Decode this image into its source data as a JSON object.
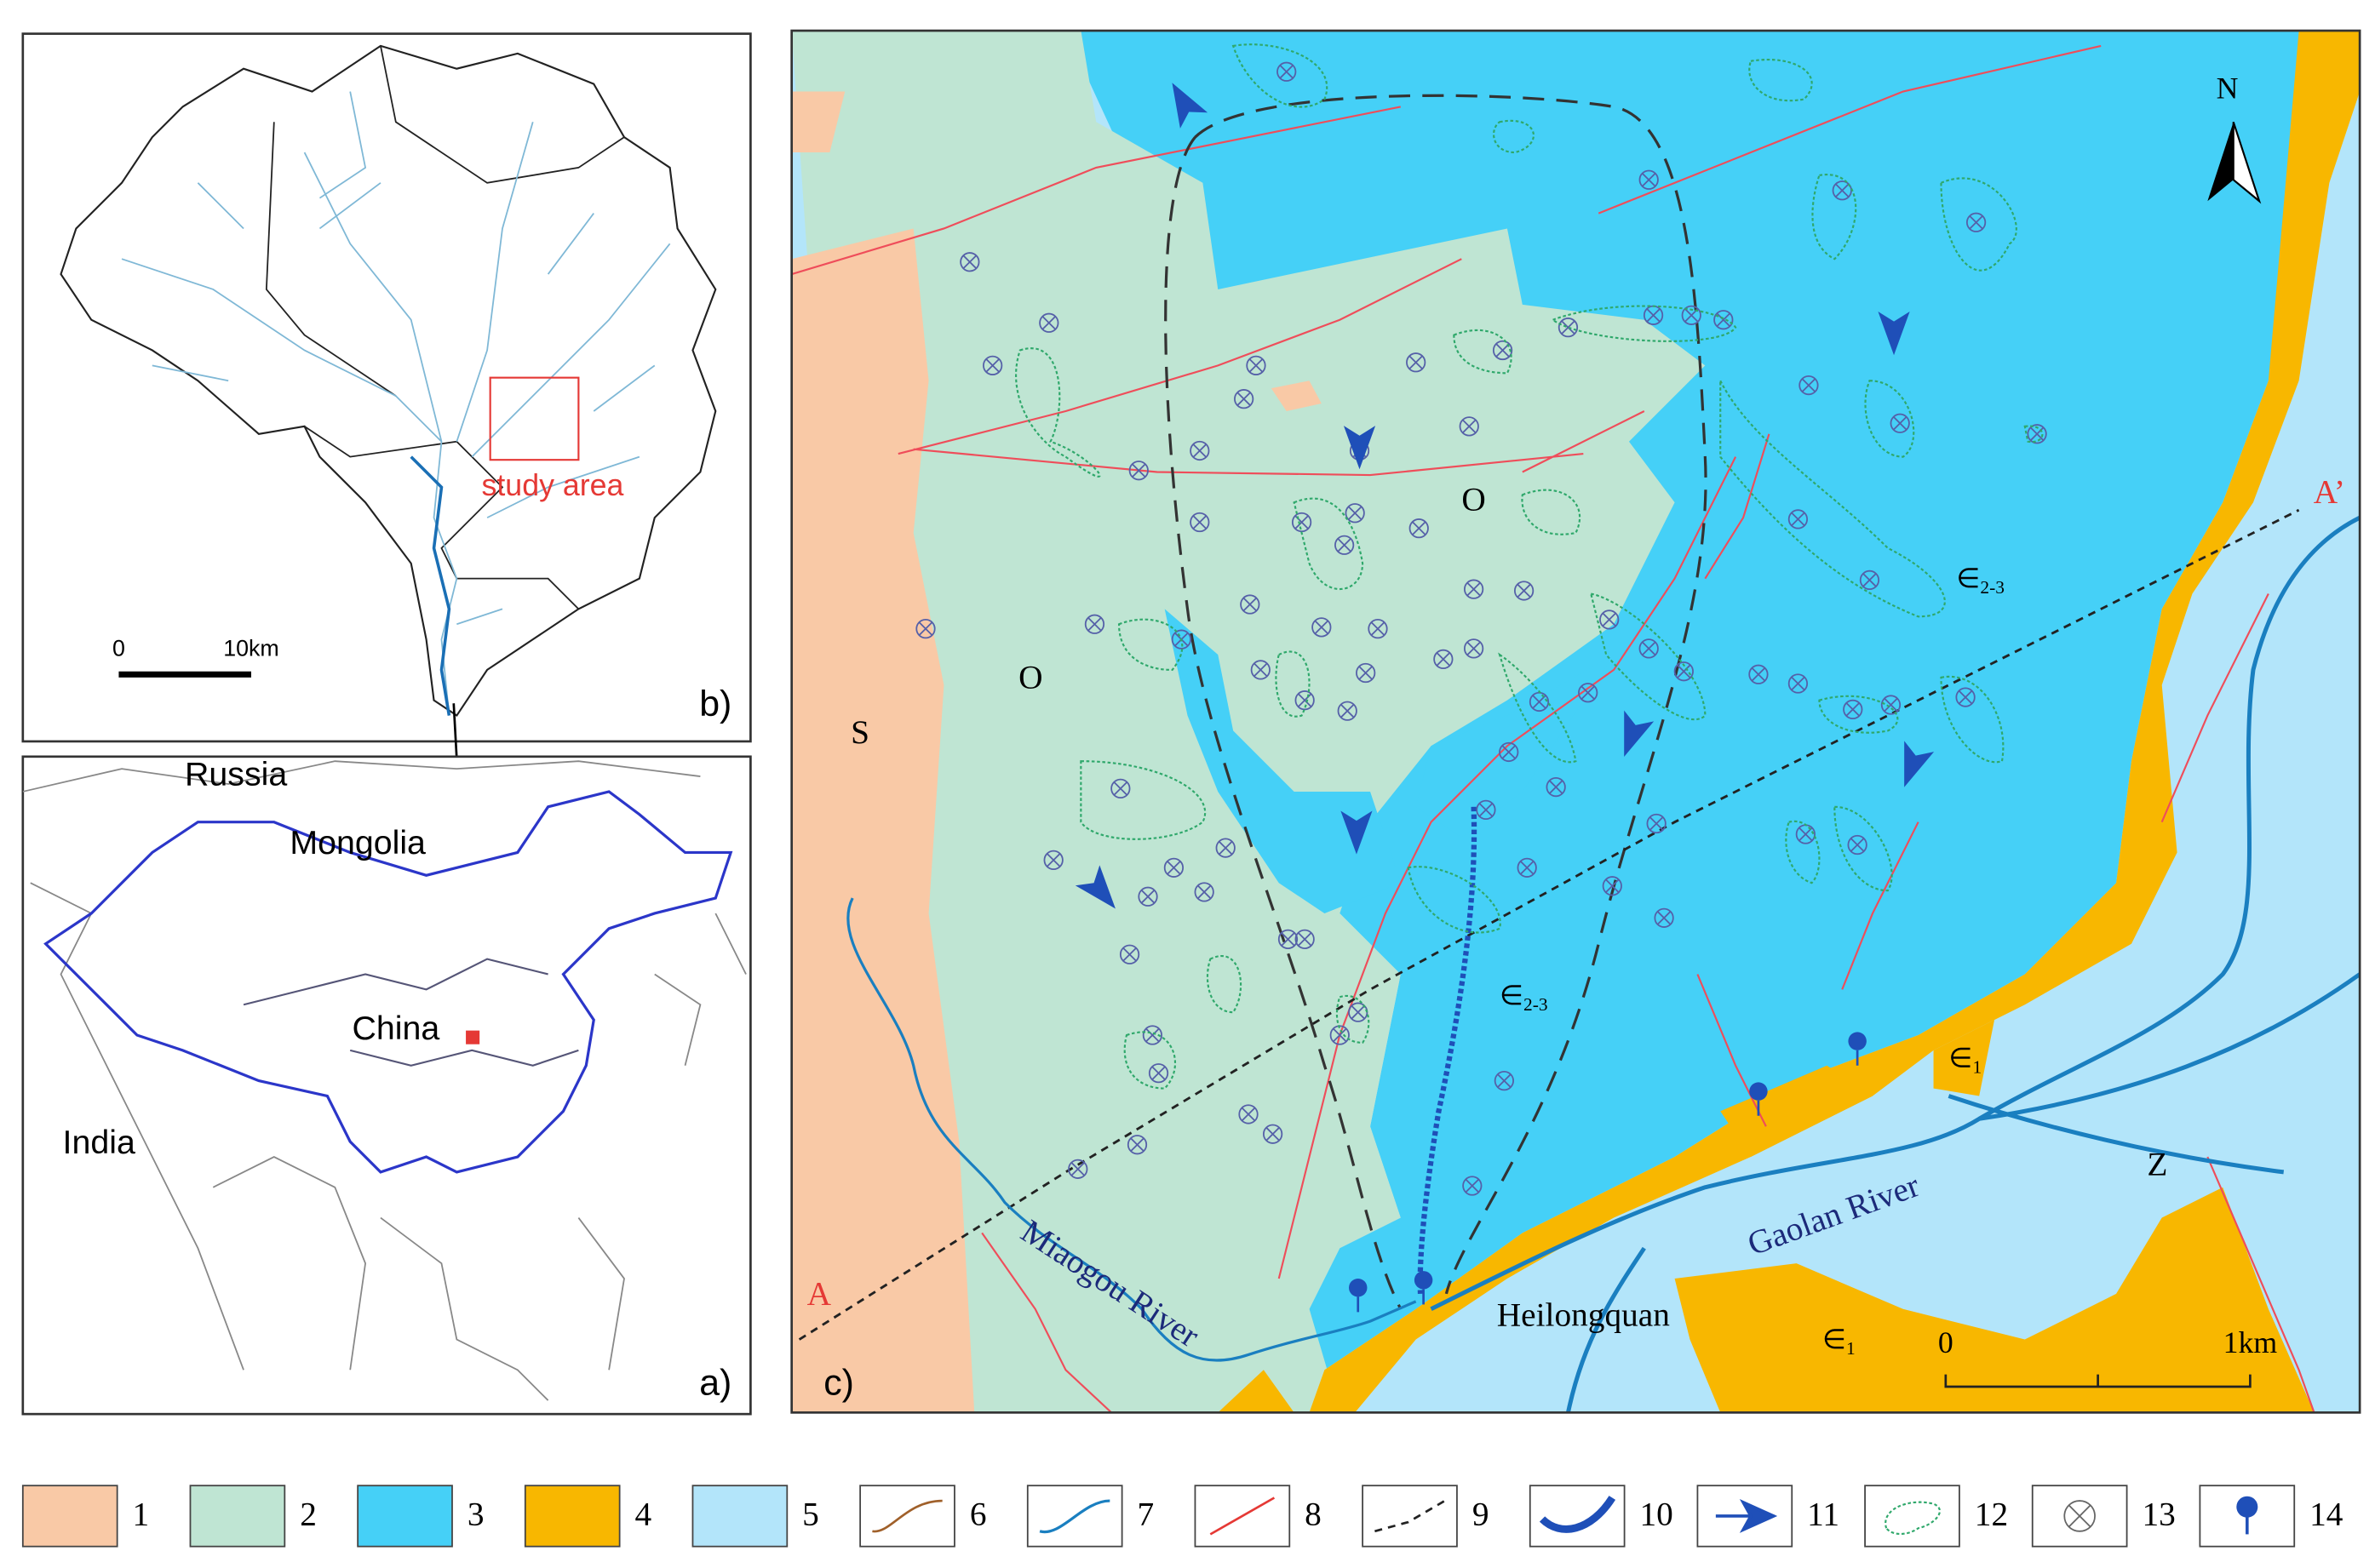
{
  "panel_labels": {
    "a": "a)",
    "b": "b)",
    "c": "c)"
  },
  "panel_b": {
    "study_area": "study area",
    "scale": {
      "start": "0",
      "end": "10km"
    }
  },
  "panel_a": {
    "countries": [
      "Russia",
      "Mongolia",
      "China",
      "India"
    ]
  },
  "panel_c": {
    "north": "N",
    "units": [
      {
        "symbol": "S"
      },
      {
        "symbol": "O"
      },
      {
        "symbol": "O"
      },
      {
        "symbol": "∈",
        "sub": "2-3"
      },
      {
        "symbol": "∈",
        "sub": "2-3"
      },
      {
        "symbol": "∈",
        "sub": "1"
      },
      {
        "symbol": "∈",
        "sub": "1"
      },
      {
        "symbol": "Z"
      }
    ],
    "section": {
      "start": "A",
      "end": "A’"
    },
    "rivers": [
      "Miaogou River",
      "Gaolan River"
    ],
    "spring": "Heilongquan",
    "scale": {
      "start": "0",
      "end": "1km"
    }
  },
  "legend": [
    "1",
    "2",
    "3",
    "4",
    "5",
    "6",
    "7",
    "8",
    "9",
    "10",
    "11",
    "12",
    "13",
    "14"
  ]
}
